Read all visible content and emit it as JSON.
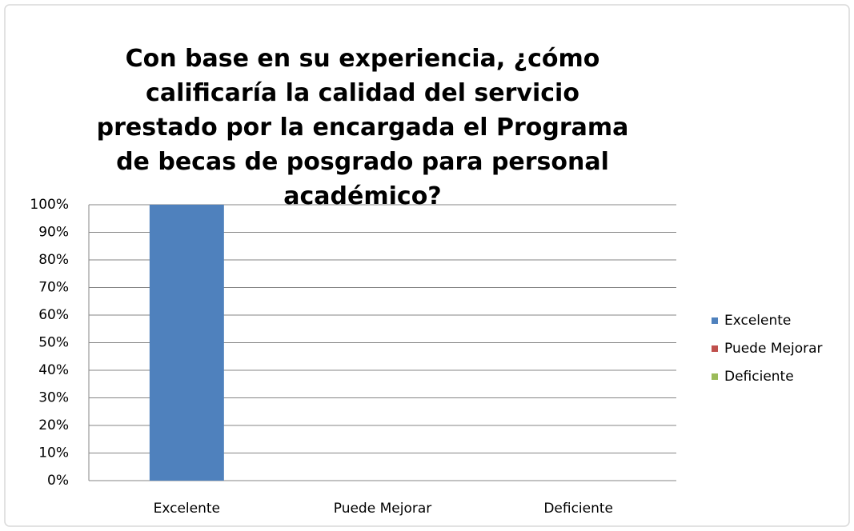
{
  "chart_data": {
    "type": "bar",
    "title": "Con base en su experiencia, ¿cómo calificaría la calidad del servicio prestado por la encargada el Programa de becas de posgrado para personal académico?",
    "categories": [
      "Excelente",
      "Puede Mejorar",
      "Deficiente"
    ],
    "values": [
      100,
      0,
      0
    ],
    "colors": [
      "#4f81bd",
      "#c0504d",
      "#9bbb59"
    ],
    "ylim": [
      0,
      100
    ],
    "yticks": [
      {
        "value": 0,
        "label": "0%"
      },
      {
        "value": 10,
        "label": "10%"
      },
      {
        "value": 20,
        "label": "20%"
      },
      {
        "value": 30,
        "label": "30%"
      },
      {
        "value": 40,
        "label": "40%"
      },
      {
        "value": 50,
        "label": "50%"
      },
      {
        "value": 60,
        "label": "60%"
      },
      {
        "value": 70,
        "label": "70%"
      },
      {
        "value": 80,
        "label": "80%"
      },
      {
        "value": 90,
        "label": "90%"
      },
      {
        "value": 100,
        "label": "100%"
      }
    ],
    "grid": true,
    "legend": "right"
  }
}
